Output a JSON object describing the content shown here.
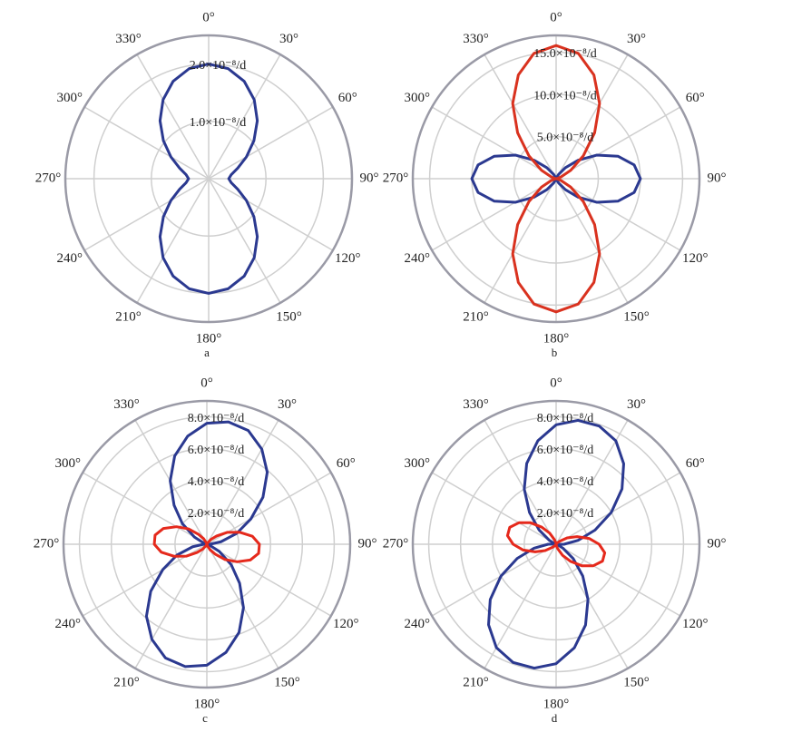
{
  "chart_data": [
    {
      "type": "polar",
      "label": "a",
      "theta": [
        0,
        10,
        20,
        30,
        40,
        50,
        60,
        70,
        80,
        90,
        100,
        110,
        120,
        130,
        140,
        150,
        160,
        170,
        180,
        190,
        200,
        210,
        220,
        230,
        240,
        250,
        260,
        270,
        280,
        290,
        300,
        310,
        320,
        330,
        340,
        350
      ],
      "thetaticks": [
        {
          "value": 0,
          "label": "0°"
        },
        {
          "value": 30,
          "label": "30°"
        },
        {
          "value": 60,
          "label": "60°"
        },
        {
          "value": 90,
          "label": "90°"
        },
        {
          "value": 120,
          "label": "120°"
        },
        {
          "value": 150,
          "label": "150°"
        },
        {
          "value": 180,
          "label": "180°"
        },
        {
          "value": 210,
          "label": "210°"
        },
        {
          "value": 240,
          "label": "240°"
        },
        {
          "value": 270,
          "label": "270°"
        },
        {
          "value": 300,
          "label": "300°"
        },
        {
          "value": 330,
          "label": "330°"
        }
      ],
      "rlim": [
        0,
        2.5
      ],
      "rticks": [
        {
          "value": 1,
          "label": "1.0×10⁻⁸/d"
        },
        {
          "value": 2,
          "label": "2.0×10⁻⁸/d"
        }
      ],
      "series": [
        {
          "color": "#2b3990",
          "values": [
            2.0,
            1.95,
            1.81,
            1.59,
            1.32,
            1.03,
            0.76,
            0.54,
            0.4,
            0.35,
            0.4,
            0.54,
            0.76,
            1.03,
            1.32,
            1.59,
            1.81,
            1.95,
            2.0,
            1.95,
            1.81,
            1.59,
            1.32,
            1.03,
            0.76,
            0.54,
            0.4,
            0.35,
            0.4,
            0.54,
            0.76,
            1.03,
            1.32,
            1.59,
            1.81,
            1.95
          ]
        }
      ]
    },
    {
      "type": "polar",
      "label": "b",
      "theta": [
        0,
        10,
        20,
        30,
        40,
        50,
        60,
        70,
        80,
        90,
        100,
        110,
        120,
        130,
        140,
        150,
        160,
        170,
        180,
        190,
        200,
        210,
        220,
        230,
        240,
        250,
        260,
        270,
        280,
        290,
        300,
        310,
        320,
        330,
        340,
        350
      ],
      "thetaticks": [
        {
          "value": 0,
          "label": "0°"
        },
        {
          "value": 30,
          "label": "30°"
        },
        {
          "value": 60,
          "label": "60°"
        },
        {
          "value": 90,
          "label": "90°"
        },
        {
          "value": 120,
          "label": "120°"
        },
        {
          "value": 150,
          "label": "150°"
        },
        {
          "value": 180,
          "label": "180°"
        },
        {
          "value": 210,
          "label": "210°"
        },
        {
          "value": 240,
          "label": "240°"
        },
        {
          "value": 270,
          "label": "270°"
        },
        {
          "value": 300,
          "label": "300°"
        },
        {
          "value": 330,
          "label": "330°"
        }
      ],
      "rlim": [
        0,
        17
      ],
      "rticks": [
        {
          "value": 5,
          "label": "5.0×10⁻⁸/d"
        },
        {
          "value": 10,
          "label": "10.0×10⁻⁸/d"
        },
        {
          "value": 15,
          "label": "15.0×10⁻⁸/d"
        }
      ],
      "series": [
        {
          "color": "#2b3990",
          "values": [
            0,
            0,
            0.1,
            0.6,
            1.7,
            3.4,
            5.6,
            7.8,
            9.4,
            10,
            9.4,
            7.8,
            5.6,
            3.4,
            1.7,
            0.6,
            0.1,
            0,
            0,
            0,
            0.1,
            0.6,
            1.7,
            3.4,
            5.6,
            7.8,
            9.4,
            10,
            9.4,
            7.8,
            5.6,
            3.4,
            1.7,
            0.6,
            0.1,
            0
          ]
        },
        {
          "color": "#d9321f",
          "values": [
            15.8,
            15.1,
            13.1,
            10.3,
            7.1,
            4.2,
            2.0,
            0.6,
            0.1,
            0,
            0.1,
            0.6,
            2.0,
            4.2,
            7.1,
            10.3,
            13.1,
            15.1,
            15.8,
            15.1,
            13.1,
            10.3,
            7.1,
            4.2,
            2.0,
            0.6,
            0.1,
            0,
            0.1,
            0.6,
            2.0,
            4.2,
            7.1,
            10.3,
            13.1,
            15.1
          ]
        }
      ]
    },
    {
      "type": "polar",
      "label": "c",
      "theta": [
        0,
        10,
        20,
        30,
        40,
        50,
        60,
        70,
        80,
        90,
        100,
        110,
        120,
        130,
        140,
        150,
        160,
        170,
        180,
        190,
        200,
        210,
        220,
        230,
        240,
        250,
        260,
        270,
        280,
        290,
        300,
        310,
        320,
        330,
        340,
        350
      ],
      "thetaticks": [
        {
          "value": 0,
          "label": "0°"
        },
        {
          "value": 30,
          "label": "30°"
        },
        {
          "value": 60,
          "label": "60°"
        },
        {
          "value": 90,
          "label": "90°"
        },
        {
          "value": 120,
          "label": "120°"
        },
        {
          "value": 150,
          "label": "150°"
        },
        {
          "value": 180,
          "label": "180°"
        },
        {
          "value": 210,
          "label": "210°"
        },
        {
          "value": 240,
          "label": "240°"
        },
        {
          "value": 270,
          "label": "270°"
        },
        {
          "value": 300,
          "label": "300°"
        },
        {
          "value": 330,
          "label": "330°"
        }
      ],
      "rlim": [
        0,
        9
      ],
      "rticks": [
        {
          "value": 2,
          "label": "2.0×10⁻⁸/d"
        },
        {
          "value": 4,
          "label": "4.0×10⁻⁸/d"
        },
        {
          "value": 6,
          "label": "6.0×10⁻⁸/d"
        },
        {
          "value": 8,
          "label": "8.0×10⁻⁸/d"
        }
      ],
      "series": [
        {
          "color": "#2b3990",
          "values": [
            7.6,
            7.8,
            7.6,
            6.9,
            5.9,
            4.6,
            3.2,
            2.0,
            0.9,
            0.2,
            0,
            0.2,
            0.9,
            2.0,
            3.2,
            4.6,
            5.9,
            6.9,
            7.6,
            7.8,
            7.6,
            6.9,
            5.9,
            4.6,
            3.2,
            2.0,
            0.9,
            0.2,
            0,
            0.2,
            0.9,
            2.0,
            3.2,
            4.6,
            5.9,
            6.9
          ]
        },
        {
          "color": "#e5291c",
          "values": [
            0,
            0,
            0,
            0.1,
            0.4,
            0.8,
            1.5,
            2.2,
            2.9,
            3.3,
            3.3,
            2.9,
            2.2,
            1.5,
            0.8,
            0.4,
            0.1,
            0,
            0,
            0,
            0,
            0.1,
            0.4,
            0.8,
            1.5,
            2.2,
            2.9,
            3.3,
            3.3,
            2.9,
            2.2,
            1.5,
            0.8,
            0.4,
            0.1,
            0
          ]
        }
      ]
    },
    {
      "type": "polar",
      "label": "d",
      "theta": [
        0,
        10,
        20,
        30,
        40,
        50,
        60,
        70,
        80,
        90,
        100,
        110,
        120,
        130,
        140,
        150,
        160,
        170,
        180,
        190,
        200,
        210,
        220,
        230,
        240,
        250,
        260,
        270,
        280,
        290,
        300,
        310,
        320,
        330,
        340,
        350
      ],
      "thetaticks": [
        {
          "value": 0,
          "label": "0°"
        },
        {
          "value": 30,
          "label": "30°"
        },
        {
          "value": 60,
          "label": "60°"
        },
        {
          "value": 90,
          "label": "90°"
        },
        {
          "value": 120,
          "label": "120°"
        },
        {
          "value": 150,
          "label": "150°"
        },
        {
          "value": 180,
          "label": "180°"
        },
        {
          "value": 210,
          "label": "210°"
        },
        {
          "value": 240,
          "label": "240°"
        },
        {
          "value": 270,
          "label": "270°"
        },
        {
          "value": 300,
          "label": "300°"
        },
        {
          "value": 330,
          "label": "330°"
        }
      ],
      "rlim": [
        0,
        9
      ],
      "rticks": [
        {
          "value": 2,
          "label": "2.0×10⁻⁸/d"
        },
        {
          "value": 4,
          "label": "4.0×10⁻⁸/d"
        },
        {
          "value": 6,
          "label": "6.0×10⁻⁸/d"
        },
        {
          "value": 8,
          "label": "8.0×10⁻⁸/d"
        }
      ],
      "series": [
        {
          "color": "#2b3990",
          "values": [
            7.5,
            7.9,
            7.9,
            7.5,
            6.6,
            5.4,
            4.0,
            2.6,
            1.4,
            0.5,
            0.1,
            0.1,
            0.5,
            1.4,
            2.6,
            4.0,
            5.4,
            6.6,
            7.5,
            7.9,
            7.9,
            7.5,
            6.6,
            5.4,
            4.0,
            2.6,
            1.4,
            0.5,
            0.1,
            0.1,
            0.5,
            1.4,
            2.6,
            4.0,
            5.4,
            6.6
          ]
        },
        {
          "color": "#e5291c",
          "values": [
            0,
            0,
            0,
            0,
            0.1,
            0.3,
            0.8,
            1.4,
            2.1,
            2.7,
            3.1,
            3.1,
            2.7,
            2.1,
            1.4,
            0.8,
            0.3,
            0.1,
            0,
            0,
            0,
            0,
            0.1,
            0.3,
            0.8,
            1.4,
            2.1,
            2.7,
            3.1,
            3.1,
            2.7,
            2.1,
            1.4,
            0.8,
            0.3,
            0.1
          ]
        }
      ]
    }
  ]
}
